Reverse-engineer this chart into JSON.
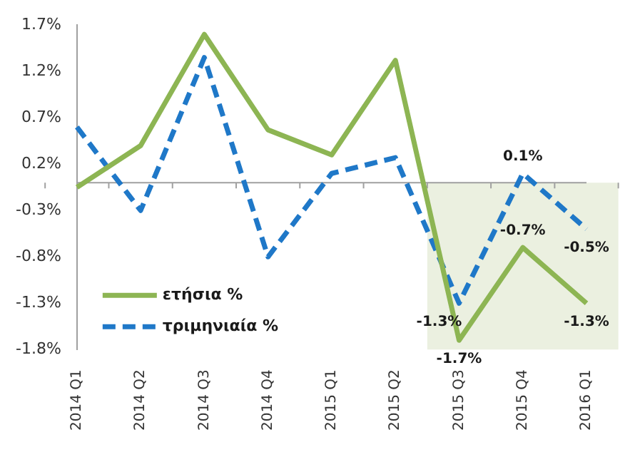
{
  "chart_data": {
    "type": "line",
    "categories": [
      "2014 Q1",
      "2014 Q2",
      "2014 Q3",
      "2014 Q4",
      "2015 Q1",
      "2015 Q2",
      "2015 Q3",
      "2015 Q4",
      "2016 Q1"
    ],
    "series": [
      {
        "name": "ετήσια %",
        "color": "#8db553",
        "line_style": "solid",
        "values": [
          -0.05,
          0.4,
          1.6,
          0.57,
          0.3,
          1.32,
          -1.7,
          -0.7,
          -1.3
        ],
        "value_labels": [
          null,
          null,
          null,
          null,
          null,
          null,
          "-1.7%",
          "-0.7%",
          "-1.3%"
        ]
      },
      {
        "name": "τριμηνιαία %",
        "color": "#1f78c8",
        "line_style": "dashed",
        "values": [
          0.6,
          -0.3,
          1.35,
          -0.8,
          0.1,
          0.27,
          -1.3,
          0.1,
          -0.5
        ],
        "value_labels": [
          null,
          null,
          null,
          null,
          null,
          null,
          "-1.3%",
          "0.1%",
          "-0.5%"
        ]
      }
    ],
    "ylim": [
      -1.8,
      1.7
    ],
    "yticks": [
      {
        "value": -1.8,
        "label": "-1.8%"
      },
      {
        "value": -1.3,
        "label": "-1.3%"
      },
      {
        "value": -0.8,
        "label": "-0.8%"
      },
      {
        "value": -0.3,
        "label": "-0.3%"
      },
      {
        "value": 0.2,
        "label": "0.2%"
      },
      {
        "value": 0.7,
        "label": "0.7%"
      },
      {
        "value": 1.2,
        "label": "1.2%"
      },
      {
        "value": 1.7,
        "label": "1.7%"
      }
    ],
    "bands": [
      {
        "axis": "x",
        "from": "2015 Q3",
        "to": "2016 Q1",
        "color": "#ebf0e0"
      }
    ],
    "grid": false,
    "legend": "bottom left",
    "marker": "none"
  }
}
